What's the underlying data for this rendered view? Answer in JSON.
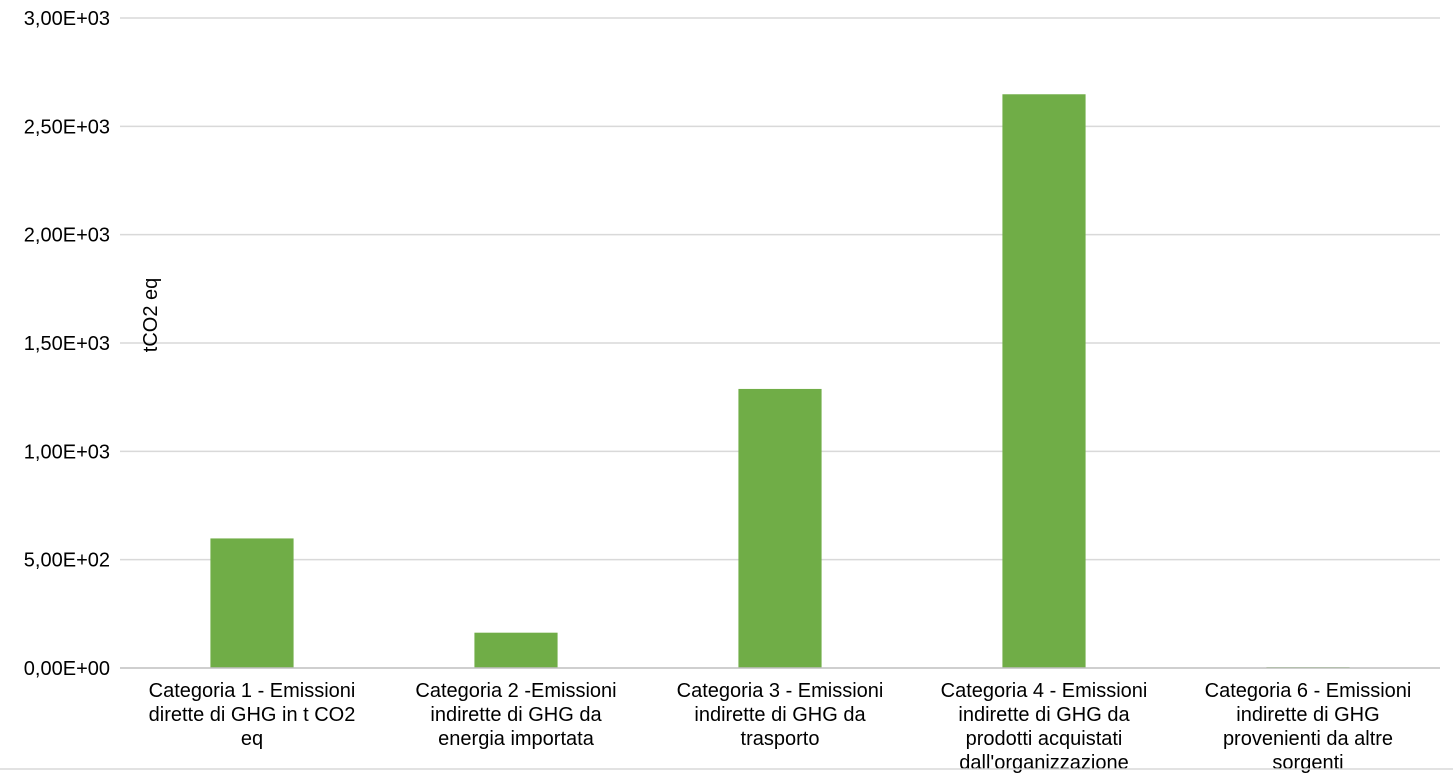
{
  "chart_data": {
    "type": "bar",
    "title": "",
    "xlabel": "",
    "ylabel": "tCO2 eq",
    "ylim": [
      0,
      3000
    ],
    "yticks": [
      0,
      500,
      1000,
      1500,
      2000,
      2500,
      3000
    ],
    "ytick_labels": [
      "0,00E+00",
      "5,00E+02",
      "1,00E+03",
      "1,50E+03",
      "2,00E+03",
      "2,50E+03",
      "3,00E+03"
    ],
    "grid": true,
    "legend": "none",
    "bar_color": "#70ad47",
    "categories": [
      [
        "Categoria 1 - Emissioni",
        "dirette di GHG in t CO2",
        "eq"
      ],
      [
        "Categoria 2 -Emissioni",
        "indirette di GHG da",
        "energia importata"
      ],
      [
        "Categoria 3 - Emissioni",
        "indirette di GHG da",
        "trasporto"
      ],
      [
        "Categoria 4 - Emissioni",
        "indirette di GHG da",
        "prodotti acquistati",
        "dall'organizzazione"
      ],
      [
        "Categoria 6 - Emissioni",
        "indirette di GHG",
        "provenienti da altre",
        "sorgenti"
      ]
    ],
    "values": [
      598,
      163,
      1288,
      2648,
      4
    ]
  }
}
